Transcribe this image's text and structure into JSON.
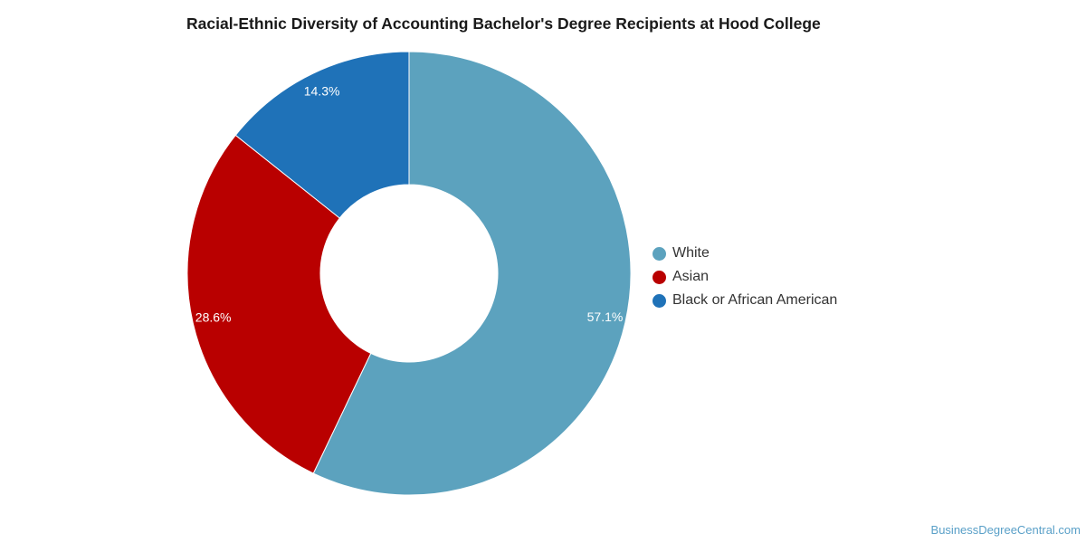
{
  "chart_data": {
    "type": "pie",
    "title": "Racial-Ethnic Diversity of Accounting Bachelor's Degree Recipients at Hood College",
    "donut": true,
    "legend_position": "right",
    "slices": [
      {
        "label": "White",
        "value": 57.1,
        "display": "57.1%",
        "color": "#5ca2be"
      },
      {
        "label": "Asian",
        "value": 28.6,
        "display": "28.6%",
        "color": "#b90000"
      },
      {
        "label": "Black or African American",
        "value": 14.3,
        "display": "14.3%",
        "color": "#1f72b8"
      }
    ]
  },
  "footer": {
    "source": "BusinessDegreeCentral.com"
  }
}
